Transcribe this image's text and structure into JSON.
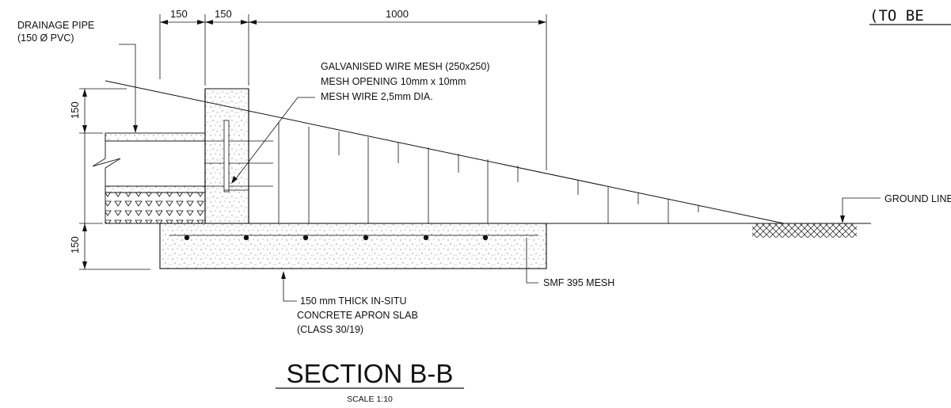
{
  "corner_note": "(TO BE",
  "dimensions": {
    "d1": "150",
    "d2": "150",
    "d3": "1000",
    "left_upper": "150",
    "left_lower": "150"
  },
  "labels": {
    "drainage_pipe_line1": "DRAINAGE PIPE",
    "drainage_pipe_line2": "(150 Ø PVC)",
    "wire_mesh_line1": "GALVANISED WIRE MESH (250x250)",
    "wire_mesh_line2": "MESH OPENING 10mm x 10mm",
    "wire_mesh_line3": "MESH WIRE 2,5mm DIA.",
    "ground_line": "GROUND LINE",
    "smf_mesh": "SMF 395 MESH",
    "slab_line1": "150 mm THICK IN-SITU",
    "slab_line2": "CONCRETE  APRON SLAB",
    "slab_line3": "(CLASS 30/19)"
  },
  "title": {
    "main": "SECTION B-B",
    "scale": "SCALE 1:10"
  }
}
